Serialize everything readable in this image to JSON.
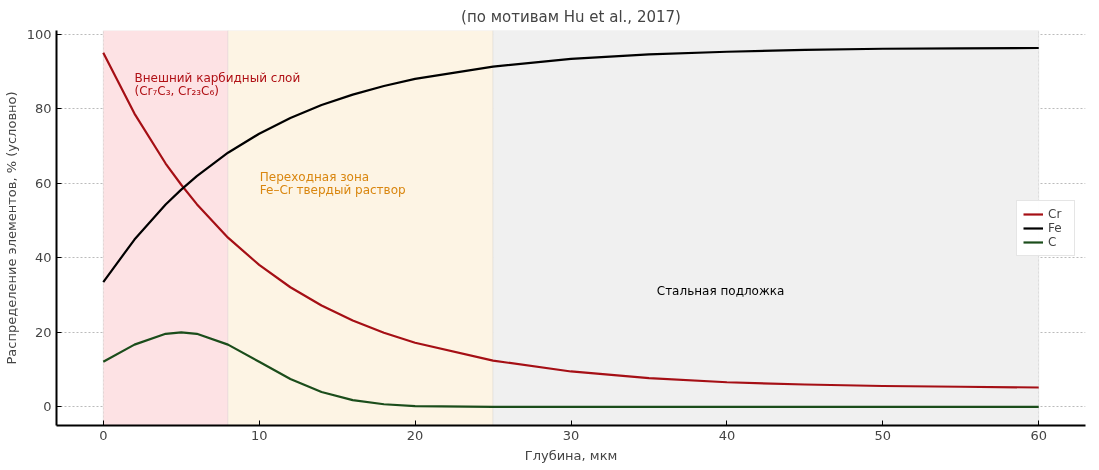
{
  "chart_data": {
    "type": "line",
    "title": "(по мотивам Hu et al., 2017)",
    "xlabel": "Глубина, мкм",
    "ylabel": "Распределение элементов, % (условно)",
    "x": [
      0,
      2,
      4,
      5,
      6,
      8,
      10,
      12,
      14,
      16,
      18,
      20,
      25,
      30,
      35,
      40,
      45,
      50,
      55,
      60
    ],
    "series": [
      {
        "name": "Cr",
        "color": "#a50f15",
        "values": [
          95,
          78.7,
          65.3,
          59.6,
          54.4,
          45.4,
          38.1,
          32.1,
          27.2,
          23.2,
          19.9,
          17.2,
          12.4,
          9.5,
          7.7,
          6.6,
          6.0,
          5.6,
          5.4,
          5.2
        ]
      },
      {
        "name": "Fe",
        "color": "#000000",
        "values": [
          33.5,
          44.9,
          54.3,
          58.3,
          61.9,
          68.2,
          73.3,
          77.5,
          81.0,
          83.8,
          86.1,
          88.0,
          91.3,
          93.4,
          94.6,
          95.3,
          95.8,
          96.1,
          96.2,
          96.3
        ]
      },
      {
        "name": "C",
        "color": "#1b4d1b",
        "values": [
          12.1,
          16.7,
          19.6,
          20,
          19.6,
          16.7,
          12.1,
          7.5,
          4.0,
          1.8,
          0.7,
          0.2,
          0,
          0,
          0,
          0,
          0,
          0,
          0,
          0
        ]
      }
    ],
    "bands": [
      {
        "axis": "x",
        "from": 0,
        "to": 8,
        "color": "#fde2e4",
        "label": "Внешний карбидный слой\n(Cr₇C₃, Cr₂₃C₆)"
      },
      {
        "axis": "x",
        "from": 8,
        "to": 25,
        "color": "#fdf4e4",
        "label": "Переходная зона\nFe–Cr твердый раствор"
      },
      {
        "axis": "x",
        "from": 25,
        "to": 60,
        "color": "#f0f0f0",
        "label": "Стальная подложка"
      }
    ],
    "xlim": [
      -3,
      63
    ],
    "ylim": [
      -5,
      101
    ],
    "xticks": [
      0,
      10,
      20,
      30,
      40,
      50,
      60
    ],
    "yticks": [
      0,
      20,
      40,
      60,
      80,
      100
    ],
    "grid": true,
    "legend": "right",
    "line_style": "solid"
  }
}
